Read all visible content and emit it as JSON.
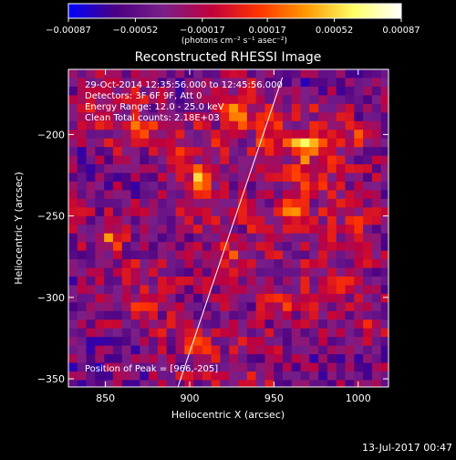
{
  "chart_data": {
    "type": "heatmap",
    "title": "Reconstructed RHESSI Image",
    "xlabel": "Heliocentric X (arcsec)",
    "ylabel": "Heliocentric Y (arcsec)",
    "xlim": [
      828,
      1018
    ],
    "ylim": [
      -355,
      -160
    ],
    "x_ticks": [
      850,
      900,
      950,
      1000
    ],
    "y_ticks": [
      -200,
      -250,
      -300,
      -350
    ],
    "x_tick_labels": [
      "850",
      "900",
      "950",
      "1000"
    ],
    "y_tick_labels": [
      "−200",
      "−250",
      "−300",
      "−350"
    ],
    "colorbar": {
      "min": -0.00087,
      "max": 0.00087,
      "ticks": [
        -0.00087,
        -0.00052,
        -0.00017,
        0.00017,
        0.00052,
        0.00087
      ],
      "tick_labels": [
        "−0.00087",
        "−0.00052",
        "−0.00017",
        "0.00017",
        "0.00052",
        "0.00087"
      ],
      "units_label": "(photons cm⁻² s⁻¹ asec⁻²)",
      "colormap": [
        "#0000ff",
        "#4b0082",
        "#7a1f8a",
        "#c0003c",
        "#ff3300",
        "#ff9900",
        "#ffff66",
        "#ffffff"
      ]
    },
    "annotations": [
      "29-Oct-2014 12:35:56.000 to 12:45:56.000",
      "Detectors: 3F 6F 9F, Att 0",
      "Energy Range: 12.0 - 25.0 keV",
      "Clean      Total counts: 2.18E+03"
    ],
    "peak_label": "Position of Peak = [966,-205]",
    "limb_line": [
      [
        893,
        -355
      ],
      [
        955,
        -165
      ]
    ],
    "blobs": [
      {
        "x": 870,
        "y": -195,
        "v": 0.0006
      },
      {
        "x": 925,
        "y": -185,
        "v": 0.00075
      },
      {
        "x": 905,
        "y": -225,
        "v": 0.0007
      },
      {
        "x": 965,
        "y": -205,
        "v": 0.00087
      },
      {
        "x": 960,
        "y": -245,
        "v": 0.0006
      },
      {
        "x": 850,
        "y": -260,
        "v": 0.0006
      },
      {
        "x": 870,
        "y": -300,
        "v": 0.0005
      },
      {
        "x": 920,
        "y": -270,
        "v": 0.00055
      },
      {
        "x": 905,
        "y": -330,
        "v": 0.0006
      },
      {
        "x": 950,
        "y": -300,
        "v": 0.0005
      },
      {
        "x": 985,
        "y": -290,
        "v": 0.0004
      },
      {
        "x": 940,
        "y": -350,
        "v": 0.0003
      },
      {
        "x": 995,
        "y": -200,
        "v": 0.00035
      },
      {
        "x": 1000,
        "y": -250,
        "v": 0.0004
      },
      {
        "x": 840,
        "y": -175,
        "v": 0.0004
      },
      {
        "x": 1005,
        "y": -320,
        "v": 0.0003
      }
    ]
  },
  "timestamp": "13-Jul-2017 00:47"
}
